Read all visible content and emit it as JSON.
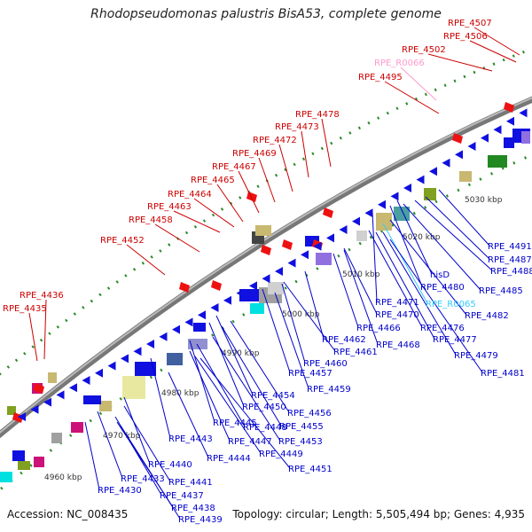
{
  "title": "Rhodopseudomonas palustris BisA53, complete genome",
  "footer": {
    "accession": "Accession: NC_008435",
    "summary": "Topology: circular; Length: 5,505,494 bp; Genes: 4,935"
  },
  "colors": {
    "forward_label": "#cc0000",
    "reverse_label": "#0000cc",
    "rna_forward_label": "#ff99cc",
    "rna_reverse_label": "#33ccff",
    "backbone": "#888888"
  },
  "scale_ticks": [
    "4960 kbp",
    "4970 kbp",
    "4980 kbp",
    "4990 kbp",
    "5000 kbp",
    "5010 kbp",
    "5020 kbp",
    "5030 kbp"
  ],
  "forward_labels": [
    "RPE_4507",
    "RPE_4506",
    "RPE_4502",
    "RPE_R0066",
    "RPE_4495",
    "RPE_4478",
    "RPE_4473",
    "RPE_4472",
    "RPE_4469",
    "RPE_4467",
    "RPE_4465",
    "RPE_4464",
    "RPE_4463",
    "RPE_4458",
    "RPE_4452",
    "RPE_4436",
    "RPE_4435"
  ],
  "reverse_labels": [
    "RPE_4491",
    "RPE_4487",
    "RPE_4488",
    "RPE_4485",
    "hisD",
    "RPE_4480",
    "RPE_4471",
    "RPE_R0065",
    "RPE_4482",
    "RPE_4470",
    "RPE_4476",
    "RPE_4477",
    "RPE_4466",
    "RPE_4468",
    "RPE_4462",
    "RPE_4479",
    "RPE_4461",
    "RPE_4460",
    "RPE_4481",
    "RPE_4457",
    "RPE_4459",
    "RPE_4454",
    "RPE_4456",
    "RPE_4450",
    "RPE_4455",
    "RPE_4445",
    "RPE_4448",
    "RPE_4453",
    "RPE_4443",
    "RPE_4447",
    "RPE_4449",
    "RPE_4444",
    "RPE_4451",
    "RPE_4440",
    "RPE_4441",
    "RPE_4433",
    "RPE_4430",
    "RPE_4437",
    "RPE_4438",
    "RPE_4439"
  ]
}
